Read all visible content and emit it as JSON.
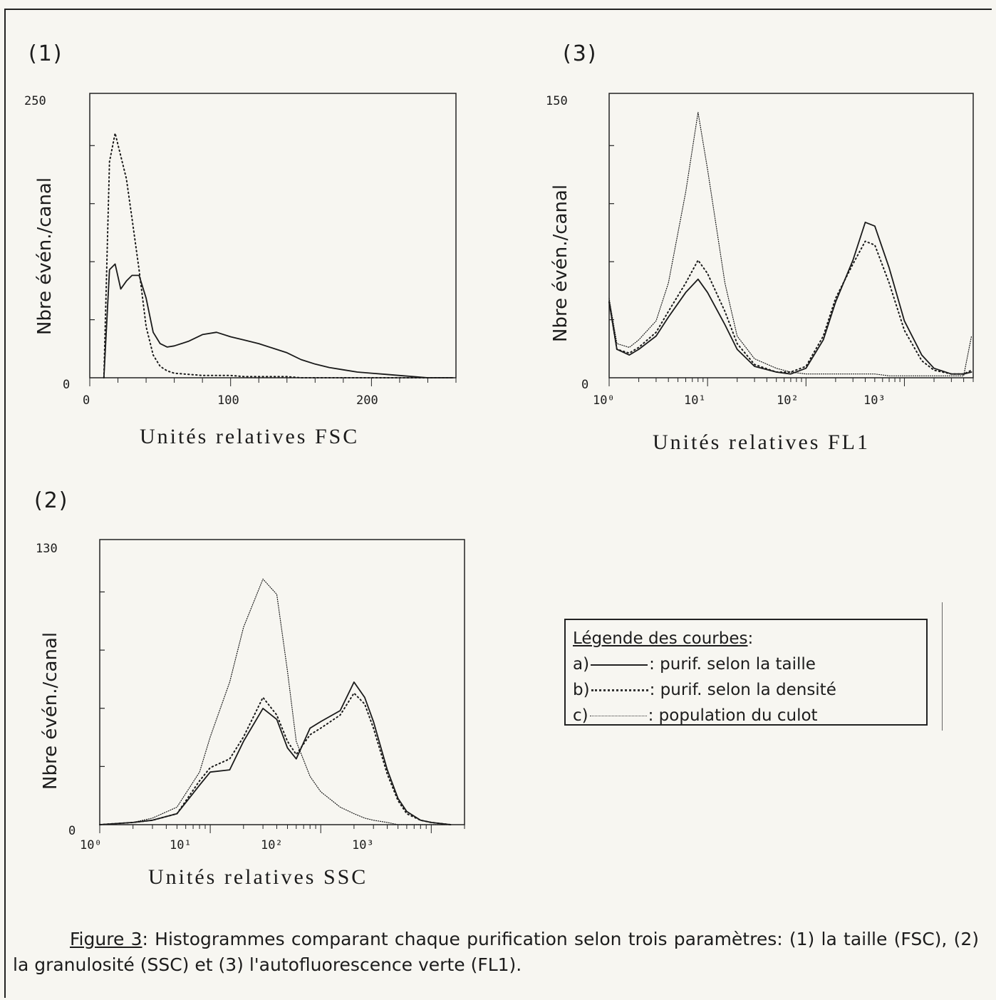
{
  "chart_data": [
    {
      "type": "line",
      "panel": "(1)",
      "xlabel": "Unités relatives FSC",
      "ylabel": "Nbre évén./canal",
      "xscale": "linear",
      "xlim": [
        0,
        260
      ],
      "ylim": [
        0,
        250
      ],
      "ymax_label": "250",
      "ymin_label": "0",
      "xticks": [
        "0",
        "100",
        "200"
      ],
      "x": [
        10,
        14,
        18,
        22,
        26,
        30,
        35,
        40,
        45,
        50,
        55,
        60,
        70,
        80,
        90,
        100,
        110,
        120,
        130,
        140,
        150,
        160,
        170,
        180,
        190,
        200,
        210,
        220,
        230,
        240,
        250,
        258
      ],
      "series": [
        {
          "name": "a",
          "style": "solid",
          "values": [
            0,
            95,
            100,
            78,
            85,
            90,
            90,
            70,
            40,
            30,
            27,
            28,
            32,
            38,
            40,
            36,
            33,
            30,
            26,
            22,
            16,
            12,
            9,
            7,
            5,
            4,
            3,
            2,
            1,
            0,
            0,
            0
          ]
        },
        {
          "name": "c",
          "style": "dotted",
          "values": [
            0,
            190,
            215,
            195,
            175,
            140,
            95,
            45,
            20,
            10,
            6,
            4,
            3,
            2,
            2,
            2,
            1,
            1,
            1,
            1,
            0,
            0,
            0,
            0,
            0,
            0,
            0,
            0,
            0,
            0,
            0,
            0
          ]
        }
      ]
    },
    {
      "type": "line",
      "panel": "(2)",
      "xlabel": "Unités relatives SSC",
      "ylabel": "Nbre évén./canal",
      "xscale": "log",
      "xlim": [
        1,
        2000
      ],
      "ylim": [
        0,
        130
      ],
      "ymax_label": "130",
      "ymin_label": "0",
      "xticks": [
        "10⁰",
        "10¹",
        "10²",
        "10³"
      ],
      "x": [
        1,
        2,
        3,
        5,
        8,
        10,
        15,
        20,
        30,
        40,
        50,
        60,
        80,
        100,
        150,
        200,
        250,
        300,
        400,
        500,
        600,
        800,
        1000,
        1500
      ],
      "series": [
        {
          "name": "a",
          "style": "solid",
          "values": [
            0,
            1,
            2,
            5,
            18,
            24,
            25,
            38,
            53,
            48,
            35,
            30,
            44,
            47,
            52,
            65,
            58,
            47,
            25,
            12,
            6,
            2,
            1,
            0
          ]
        },
        {
          "name": "b",
          "style": "dotted",
          "values": [
            0,
            1,
            2,
            5,
            20,
            26,
            30,
            40,
            58,
            50,
            38,
            32,
            41,
            44,
            50,
            60,
            55,
            44,
            23,
            11,
            5,
            2,
            1,
            0
          ]
        },
        {
          "name": "c",
          "style": "fine-dotted",
          "values": [
            0,
            1,
            3,
            8,
            24,
            40,
            65,
            90,
            112,
            105,
            70,
            38,
            22,
            15,
            8,
            5,
            3,
            2,
            1,
            0,
            0,
            0,
            0,
            0
          ]
        }
      ]
    },
    {
      "type": "line",
      "panel": "(3)",
      "xlabel": "Unités relatives FL1",
      "ylabel": "Nbre évén./canal",
      "xscale": "log",
      "xlim": [
        1,
        5000
      ],
      "ylim": [
        0,
        150
      ],
      "ymax_label": "150",
      "ymin_label": "0",
      "xticks": [
        "10⁰",
        "10¹",
        "10²",
        "10³"
      ],
      "x": [
        1,
        1.2,
        1.6,
        2,
        3,
        4,
        6,
        8,
        10,
        15,
        20,
        30,
        50,
        70,
        100,
        150,
        200,
        300,
        400,
        500,
        700,
        1000,
        1500,
        2000,
        3000,
        4000,
        4800
      ],
      "series": [
        {
          "name": "a",
          "style": "solid",
          "values": [
            40,
            15,
            12,
            15,
            22,
            32,
            45,
            52,
            45,
            28,
            15,
            6,
            3,
            2,
            5,
            20,
            40,
            62,
            82,
            80,
            58,
            30,
            12,
            5,
            2,
            2,
            3
          ]
        },
        {
          "name": "b",
          "style": "dotted",
          "values": [
            40,
            15,
            13,
            16,
            24,
            35,
            50,
            62,
            55,
            35,
            18,
            7,
            3,
            3,
            6,
            22,
            42,
            60,
            72,
            70,
            50,
            25,
            9,
            4,
            2,
            2,
            4
          ]
        },
        {
          "name": "c",
          "style": "fine-dotted",
          "values": [
            42,
            18,
            16,
            20,
            30,
            50,
            98,
            140,
            110,
            50,
            22,
            10,
            5,
            3,
            2,
            2,
            2,
            2,
            2,
            2,
            1,
            1,
            1,
            1,
            1,
            1,
            22
          ]
        }
      ]
    }
  ],
  "legend": {
    "title": "Légende des courbes",
    "title_suffix": ":",
    "items": [
      {
        "key": "a)",
        "style": "solid",
        "text": ": purif. selon la taille"
      },
      {
        "key": "b)",
        "style": "dotted",
        "text": ": purif. selon la densité"
      },
      {
        "key": "c)",
        "style": "fine-dotted",
        "text": ": population du culot"
      }
    ]
  },
  "caption": {
    "figure_label": "Figure 3",
    "text": ": Histogrammes comparant chaque purification selon trois paramètres: (1) la taille (FSC), (2) la granulosité (SSC) et (3) l'autofluorescence verte (FL1)."
  }
}
